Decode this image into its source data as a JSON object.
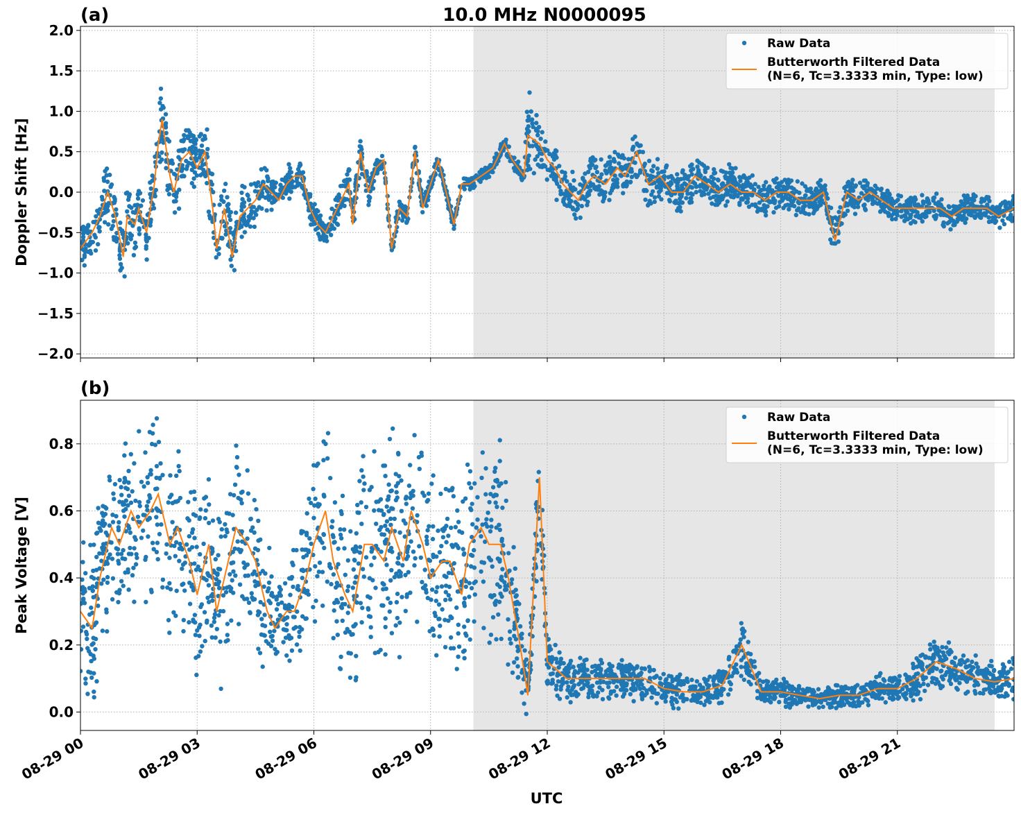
{
  "figure": {
    "title": "10.0 MHz N0000095",
    "xlabel": "UTC"
  },
  "colors": {
    "raw": "#1f77b4",
    "filtered": "#ff7f0e",
    "shade": "#e6e6e6",
    "grid": "#b0b0b0"
  },
  "legend": {
    "raw_label": "Raw Data",
    "filtered_line1": "Butterworth Filtered Data",
    "filtered_line2": "(N=6, Tc=3.3333 min, Type: low)"
  },
  "chart_data": [
    {
      "panel": "(a)",
      "type": "scatter",
      "ylabel": "Doppler Shift [Hz]",
      "xlim": [
        0,
        24
      ],
      "ylim": [
        -2.05,
        2.05
      ],
      "yticks": [
        "2.0",
        "1.5",
        "1.0",
        "0.5",
        "0.0",
        "−0.5",
        "−1.0",
        "−1.5",
        "−2.0"
      ],
      "ytick_values": [
        2.0,
        1.5,
        1.0,
        0.5,
        0.0,
        -0.5,
        -1.0,
        -1.5,
        -2.0
      ],
      "xticks": [
        "08-29 00",
        "08-29 03",
        "08-29 06",
        "08-29 09",
        "08-29 12",
        "08-29 15",
        "08-29 18",
        "08-29 21"
      ],
      "xtick_hours": [
        0,
        3,
        6,
        9,
        12,
        15,
        18,
        21
      ],
      "shaded_hours": [
        10.1,
        23.5
      ],
      "legend_position": "top-right",
      "grid": true,
      "series": [
        {
          "name": "Butterworth Filtered Data",
          "style": "line",
          "x": [
            0.0,
            0.3,
            0.5,
            0.7,
            0.9,
            1.1,
            1.2,
            1.4,
            1.5,
            1.7,
            1.9,
            2.0,
            2.1,
            2.3,
            2.4,
            2.6,
            2.8,
            3.0,
            3.2,
            3.4,
            3.5,
            3.7,
            3.9,
            4.1,
            4.3,
            4.5,
            4.7,
            4.9,
            5.1,
            5.3,
            5.5,
            5.7,
            5.9,
            6.1,
            6.3,
            6.5,
            6.7,
            6.9,
            7.0,
            7.2,
            7.4,
            7.6,
            7.8,
            8.0,
            8.2,
            8.4,
            8.6,
            8.8,
            9.0,
            9.2,
            9.4,
            9.6,
            9.8,
            10.0,
            10.3,
            10.6,
            10.9,
            11.1,
            11.4,
            11.5,
            11.8,
            12.0,
            12.2,
            12.4,
            12.6,
            12.8,
            13.0,
            13.2,
            13.5,
            13.8,
            14.0,
            14.3,
            14.6,
            14.9,
            15.2,
            15.5,
            15.8,
            16.1,
            16.4,
            16.7,
            17.0,
            17.3,
            17.6,
            17.9,
            18.2,
            18.5,
            18.8,
            19.1,
            19.4,
            19.7,
            20.0,
            20.3,
            20.6,
            20.9,
            21.2,
            21.5,
            21.8,
            22.1,
            22.4,
            22.7,
            23.0,
            23.3,
            23.6,
            24.0
          ],
          "y": [
            -0.7,
            -0.5,
            -0.3,
            0.0,
            -0.3,
            -0.8,
            -0.3,
            -0.4,
            -0.2,
            -0.5,
            0.1,
            0.6,
            0.9,
            0.2,
            0.0,
            0.4,
            0.5,
            0.3,
            0.5,
            -0.2,
            -0.7,
            -0.2,
            -0.8,
            -0.3,
            -0.2,
            -0.1,
            0.1,
            0.0,
            -0.1,
            0.1,
            0.2,
            0.2,
            -0.2,
            -0.4,
            -0.5,
            -0.3,
            -0.1,
            0.1,
            -0.4,
            0.5,
            0.0,
            0.3,
            0.4,
            -0.7,
            -0.2,
            -0.3,
            0.5,
            -0.2,
            0.1,
            0.4,
            0.0,
            -0.4,
            0.1,
            0.1,
            0.2,
            0.3,
            0.6,
            0.4,
            0.2,
            0.7,
            0.6,
            0.4,
            0.3,
            0.1,
            0.0,
            -0.1,
            0.1,
            0.2,
            0.1,
            0.3,
            0.2,
            0.5,
            0.1,
            0.2,
            0.0,
            0.0,
            0.2,
            0.1,
            0.0,
            0.1,
            0.0,
            0.0,
            -0.1,
            0.0,
            0.0,
            -0.1,
            -0.1,
            0.0,
            -0.6,
            0.0,
            -0.1,
            0.0,
            -0.1,
            -0.2,
            -0.2,
            -0.2,
            -0.2,
            -0.2,
            -0.3,
            -0.2,
            -0.2,
            -0.2,
            -0.3,
            -0.2
          ]
        },
        {
          "name": "Raw Data",
          "style": "scatter",
          "x": [
            0.0,
            0.3,
            0.5,
            0.7,
            0.9,
            1.1,
            1.2,
            1.4,
            1.5,
            1.7,
            1.9,
            2.0,
            2.1,
            2.3,
            2.4,
            2.6,
            2.8,
            3.0,
            3.2,
            3.4,
            3.5,
            3.7,
            3.9,
            4.1,
            4.3,
            4.5,
            4.7,
            4.9,
            5.1,
            5.3,
            5.5,
            5.7,
            5.9,
            6.1,
            6.3,
            6.5,
            6.7,
            6.9,
            7.0,
            7.2,
            7.4,
            7.6,
            7.8,
            8.0,
            8.2,
            8.4,
            8.6,
            8.8,
            9.0,
            9.2,
            9.4,
            9.6,
            9.8,
            10.0,
            10.3,
            10.6,
            10.9,
            11.1,
            11.4,
            11.5,
            11.8,
            12.0,
            12.2,
            12.4,
            12.6,
            12.8,
            13.0,
            13.2,
            13.5,
            13.8,
            14.0,
            14.3,
            14.6,
            14.9,
            15.2,
            15.5,
            15.8,
            16.1,
            16.4,
            16.7,
            17.0,
            17.3,
            17.6,
            17.9,
            18.2,
            18.5,
            18.8,
            19.1,
            19.4,
            19.7,
            20.0,
            20.3,
            20.6,
            20.9,
            21.2,
            21.5,
            21.8,
            22.1,
            22.4,
            22.7,
            23.0,
            23.3,
            23.6,
            24.0
          ],
          "y": [
            -0.7,
            -0.5,
            -0.3,
            0.0,
            -0.3,
            -0.8,
            -0.3,
            -0.4,
            -0.2,
            -0.5,
            0.1,
            0.6,
            0.9,
            0.2,
            0.0,
            0.4,
            0.5,
            0.3,
            0.5,
            -0.2,
            -0.7,
            -0.2,
            -0.8,
            -0.3,
            -0.2,
            -0.1,
            0.1,
            0.0,
            -0.1,
            0.1,
            0.2,
            0.2,
            -0.2,
            -0.4,
            -0.5,
            -0.3,
            -0.1,
            0.1,
            -0.4,
            0.5,
            0.0,
            0.3,
            0.4,
            -0.7,
            -0.2,
            -0.3,
            0.5,
            -0.2,
            0.1,
            0.4,
            0.0,
            -0.4,
            0.1,
            0.1,
            0.2,
            0.3,
            0.6,
            0.4,
            0.2,
            0.7,
            0.6,
            0.4,
            0.3,
            0.1,
            0.0,
            -0.1,
            0.1,
            0.2,
            0.1,
            0.3,
            0.2,
            0.5,
            0.1,
            0.2,
            0.0,
            0.0,
            0.2,
            0.1,
            0.0,
            0.1,
            0.0,
            0.0,
            -0.1,
            0.0,
            0.0,
            -0.1,
            -0.1,
            0.0,
            -0.6,
            0.0,
            -0.1,
            0.0,
            -0.1,
            -0.2,
            -0.2,
            -0.2,
            -0.2,
            -0.2,
            -0.3,
            -0.2,
            -0.2,
            -0.2,
            -0.3,
            -0.2
          ],
          "spread": [
            0.35,
            0.35,
            0.4,
            0.45,
            0.45,
            0.55,
            0.5,
            0.45,
            0.45,
            0.5,
            0.5,
            0.55,
            0.55,
            0.5,
            0.5,
            0.5,
            0.45,
            0.5,
            0.5,
            0.5,
            0.55,
            0.5,
            0.5,
            0.45,
            0.35,
            0.35,
            0.3,
            0.3,
            0.25,
            0.25,
            0.2,
            0.2,
            0.2,
            0.2,
            0.2,
            0.25,
            0.25,
            0.25,
            0.2,
            0.3,
            0.25,
            0.15,
            0.1,
            0.15,
            0.15,
            0.15,
            0.15,
            0.15,
            0.1,
            0.1,
            0.1,
            0.1,
            0.1,
            0.1,
            0.1,
            0.1,
            0.1,
            0.1,
            0.1,
            0.6,
            0.4,
            0.45,
            0.4,
            0.35,
            0.3,
            0.3,
            0.3,
            0.3,
            0.3,
            0.35,
            0.3,
            0.35,
            0.3,
            0.3,
            0.3,
            0.3,
            0.3,
            0.3,
            0.3,
            0.3,
            0.25,
            0.25,
            0.25,
            0.25,
            0.25,
            0.25,
            0.25,
            0.25,
            0.3,
            0.25,
            0.25,
            0.2,
            0.2,
            0.2,
            0.2,
            0.2,
            0.2,
            0.2,
            0.2,
            0.2,
            0.2,
            0.2,
            0.2,
            0.2
          ]
        }
      ]
    },
    {
      "panel": "(b)",
      "type": "scatter",
      "ylabel": "Peak Voltage [V]",
      "xlim": [
        0,
        24
      ],
      "ylim": [
        -0.055,
        0.93
      ],
      "yticks": [
        "0.8",
        "0.6",
        "0.4",
        "0.2",
        "0.0"
      ],
      "ytick_values": [
        0.8,
        0.6,
        0.4,
        0.2,
        0.0
      ],
      "xticks": [
        "08-29 00",
        "08-29 03",
        "08-29 06",
        "08-29 09",
        "08-29 12",
        "08-29 15",
        "08-29 18",
        "08-29 21"
      ],
      "xtick_hours": [
        0,
        3,
        6,
        9,
        12,
        15,
        18,
        21
      ],
      "shaded_hours": [
        10.1,
        23.5
      ],
      "legend_position": "top-right",
      "grid": true,
      "series": [
        {
          "name": "Butterworth Filtered Data",
          "style": "line",
          "x": [
            0.0,
            0.3,
            0.5,
            0.8,
            1.0,
            1.3,
            1.5,
            1.8,
            2.0,
            2.3,
            2.5,
            2.8,
            3.0,
            3.3,
            3.5,
            3.8,
            4.0,
            4.3,
            4.5,
            4.8,
            5.0,
            5.3,
            5.5,
            5.8,
            6.0,
            6.3,
            6.5,
            6.8,
            7.0,
            7.3,
            7.5,
            7.8,
            8.0,
            8.3,
            8.5,
            8.8,
            9.0,
            9.3,
            9.5,
            9.8,
            10.0,
            10.3,
            10.5,
            10.8,
            11.0,
            11.3,
            11.5,
            11.8,
            12.0,
            12.5,
            13.0,
            13.5,
            14.0,
            14.5,
            15.0,
            15.5,
            16.0,
            16.5,
            17.0,
            17.5,
            18.0,
            18.5,
            19.0,
            19.5,
            20.0,
            20.5,
            21.0,
            21.5,
            22.0,
            22.5,
            23.0,
            23.5,
            24.0
          ],
          "y": [
            0.3,
            0.25,
            0.4,
            0.55,
            0.5,
            0.6,
            0.55,
            0.6,
            0.65,
            0.5,
            0.55,
            0.45,
            0.35,
            0.5,
            0.3,
            0.45,
            0.55,
            0.5,
            0.45,
            0.3,
            0.25,
            0.3,
            0.3,
            0.4,
            0.5,
            0.6,
            0.45,
            0.35,
            0.3,
            0.5,
            0.5,
            0.45,
            0.55,
            0.45,
            0.6,
            0.5,
            0.4,
            0.45,
            0.45,
            0.35,
            0.5,
            0.55,
            0.5,
            0.5,
            0.4,
            0.2,
            0.05,
            0.7,
            0.15,
            0.1,
            0.1,
            0.1,
            0.1,
            0.1,
            0.07,
            0.06,
            0.06,
            0.08,
            0.2,
            0.06,
            0.06,
            0.05,
            0.04,
            0.05,
            0.05,
            0.07,
            0.07,
            0.1,
            0.15,
            0.13,
            0.1,
            0.09,
            0.1
          ]
        },
        {
          "name": "Raw Data",
          "style": "scatter",
          "x": [
            0.0,
            0.3,
            0.5,
            0.8,
            1.0,
            1.3,
            1.5,
            1.8,
            2.0,
            2.3,
            2.5,
            2.8,
            3.0,
            3.3,
            3.5,
            3.8,
            4.0,
            4.3,
            4.5,
            4.8,
            5.0,
            5.3,
            5.5,
            5.8,
            6.0,
            6.3,
            6.5,
            6.8,
            7.0,
            7.3,
            7.5,
            7.8,
            8.0,
            8.3,
            8.5,
            8.8,
            9.0,
            9.3,
            9.5,
            9.8,
            10.0,
            10.3,
            10.5,
            10.8,
            11.0,
            11.3,
            11.5,
            11.8,
            12.0,
            12.5,
            13.0,
            13.5,
            14.0,
            14.5,
            15.0,
            15.5,
            16.0,
            16.5,
            17.0,
            17.5,
            18.0,
            18.5,
            19.0,
            19.5,
            20.0,
            20.5,
            21.0,
            21.5,
            22.0,
            22.5,
            23.0,
            23.5,
            24.0
          ],
          "y": [
            0.3,
            0.25,
            0.4,
            0.55,
            0.5,
            0.6,
            0.55,
            0.6,
            0.65,
            0.5,
            0.55,
            0.45,
            0.35,
            0.5,
            0.3,
            0.45,
            0.55,
            0.5,
            0.45,
            0.3,
            0.25,
            0.3,
            0.3,
            0.4,
            0.5,
            0.6,
            0.45,
            0.35,
            0.3,
            0.5,
            0.5,
            0.45,
            0.55,
            0.45,
            0.6,
            0.5,
            0.4,
            0.45,
            0.45,
            0.35,
            0.5,
            0.55,
            0.5,
            0.5,
            0.4,
            0.2,
            0.05,
            0.7,
            0.15,
            0.1,
            0.1,
            0.1,
            0.1,
            0.1,
            0.07,
            0.06,
            0.06,
            0.08,
            0.2,
            0.06,
            0.06,
            0.05,
            0.04,
            0.05,
            0.05,
            0.07,
            0.07,
            0.1,
            0.15,
            0.13,
            0.1,
            0.09,
            0.1
          ],
          "spread": [
            0.25,
            0.3,
            0.3,
            0.3,
            0.3,
            0.3,
            0.3,
            0.3,
            0.25,
            0.3,
            0.3,
            0.3,
            0.3,
            0.3,
            0.3,
            0.3,
            0.3,
            0.3,
            0.3,
            0.25,
            0.15,
            0.15,
            0.2,
            0.25,
            0.3,
            0.3,
            0.35,
            0.35,
            0.3,
            0.35,
            0.35,
            0.35,
            0.35,
            0.35,
            0.3,
            0.35,
            0.35,
            0.3,
            0.3,
            0.3,
            0.35,
            0.35,
            0.35,
            0.35,
            0.35,
            0.15,
            0.1,
            0.2,
            0.1,
            0.08,
            0.08,
            0.07,
            0.06,
            0.08,
            0.06,
            0.05,
            0.05,
            0.06,
            0.1,
            0.05,
            0.05,
            0.04,
            0.03,
            0.04,
            0.04,
            0.05,
            0.05,
            0.07,
            0.1,
            0.08,
            0.07,
            0.06,
            0.07
          ]
        }
      ]
    }
  ]
}
